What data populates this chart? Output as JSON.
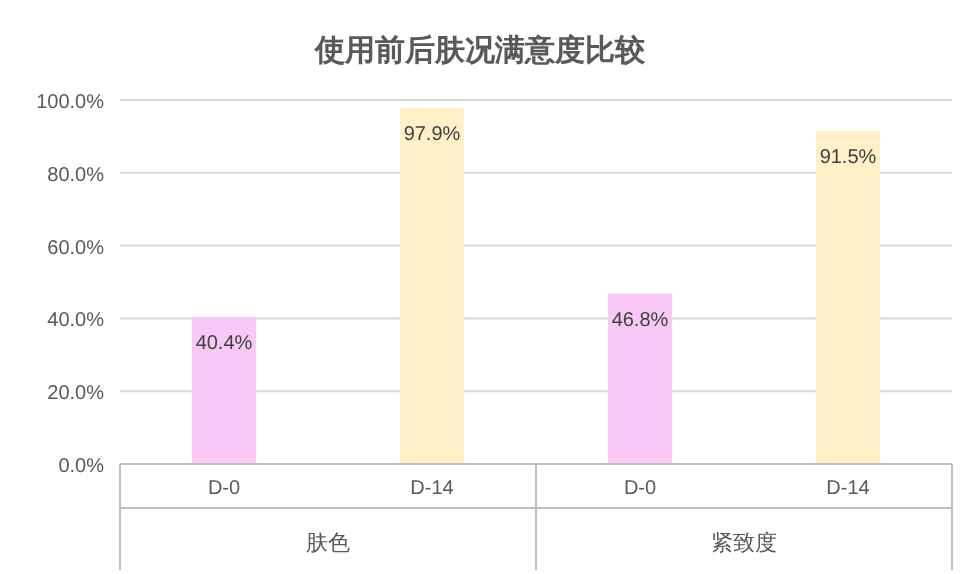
{
  "chart_data": {
    "type": "bar",
    "title": "使用前后肤况满意度比较",
    "categories": [
      "D-0",
      "D-14",
      "D-0",
      "D-14"
    ],
    "values": [
      40.4,
      97.9,
      46.8,
      91.5
    ],
    "colors": [
      "#f9c8f7",
      "#fff0c8",
      "#f9c8f7",
      "#fff0c8"
    ],
    "value_labels": [
      "40.4%",
      "97.9%",
      "46.8%",
      "91.5%"
    ],
    "annotations": [
      "肤色",
      "紧致度"
    ],
    "ylim": [
      0,
      100
    ],
    "yticks": [
      {
        "value": 0,
        "label": "0.0%"
      },
      {
        "value": 20,
        "label": "20.0%"
      },
      {
        "value": 40,
        "label": "40.0%"
      },
      {
        "value": 60,
        "label": "60.0%"
      },
      {
        "value": 80,
        "label": "80.0%"
      },
      {
        "value": 100,
        "label": "100.0%"
      }
    ],
    "grid": "y"
  }
}
